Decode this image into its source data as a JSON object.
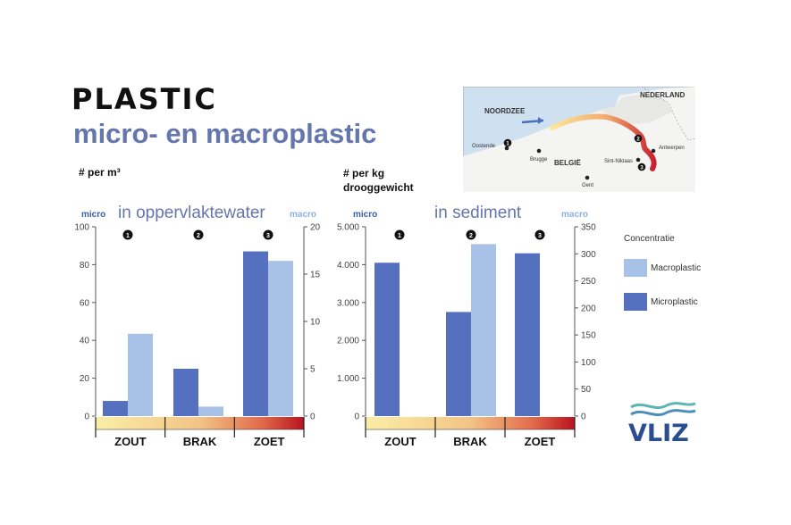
{
  "title": "PLASTIC",
  "subtitle": "micro- en macroplastic",
  "colors": {
    "micro": "#5670c0",
    "macro": "#a8c1e7",
    "accent_text": "#6576ad",
    "axis_micro": "#3b5faa",
    "axis_macro": "#8eb0df",
    "logo": "#2a4d8f"
  },
  "legend": {
    "title": "Concentratie",
    "items": [
      {
        "label": "Macroplastic",
        "color": "#a8c1e7"
      },
      {
        "label": "Microplastic",
        "color": "#5670c0"
      }
    ]
  },
  "map": {
    "labels": {
      "sea": "NOORDZEE",
      "nl": "NEDERLAND",
      "be": "BELGIË",
      "c1": "Oostende",
      "c2": "Brugge",
      "c3": "Antwerpen",
      "c4": "Sint-Niklaas",
      "c5": "Gent"
    },
    "markers": [
      "1",
      "2",
      "3"
    ]
  },
  "logo_text": "VLIZ",
  "chart_data": [
    {
      "type": "bar",
      "title": "in oppervlaktewater",
      "unit_label": "# per m³",
      "left_axis_tag": "micro",
      "right_axis_tag": "macro",
      "categories": [
        "ZOUT",
        "BRAK",
        "ZOET"
      ],
      "category_markers": [
        "1",
        "2",
        "3"
      ],
      "left_ylim": [
        0,
        100
      ],
      "left_ticks": [
        "0",
        "20",
        "40",
        "60",
        "80",
        "100"
      ],
      "right_ylim": [
        0,
        20
      ],
      "right_ticks": [
        "0",
        "5",
        "10",
        "15",
        "20"
      ],
      "series": [
        {
          "name": "Microplastic",
          "axis": "left",
          "values": [
            8,
            25,
            87
          ]
        },
        {
          "name": "Macroplastic",
          "axis": "right",
          "values": [
            8.7,
            1,
            16.4
          ]
        }
      ]
    },
    {
      "type": "bar",
      "title": "in sediment",
      "unit_label": "# per kg\ndrooggewicht",
      "left_axis_tag": "micro",
      "right_axis_tag": "macro",
      "categories": [
        "ZOUT",
        "BRAK",
        "ZOET"
      ],
      "category_markers": [
        "1",
        "2",
        "3"
      ],
      "left_ylim": [
        0,
        5000
      ],
      "left_ticks": [
        "0",
        "1.000",
        "2.000",
        "3.000",
        "4.000",
        "5.000"
      ],
      "right_ylim": [
        0,
        350
      ],
      "right_ticks": [
        "0",
        "50",
        "100",
        "150",
        "200",
        "250",
        "300",
        "350"
      ],
      "series": [
        {
          "name": "Microplastic",
          "axis": "left",
          "values": [
            4050,
            2750,
            4300
          ]
        },
        {
          "name": "Macroplastic",
          "axis": "right",
          "values": [
            0,
            318,
            0
          ]
        }
      ]
    }
  ]
}
